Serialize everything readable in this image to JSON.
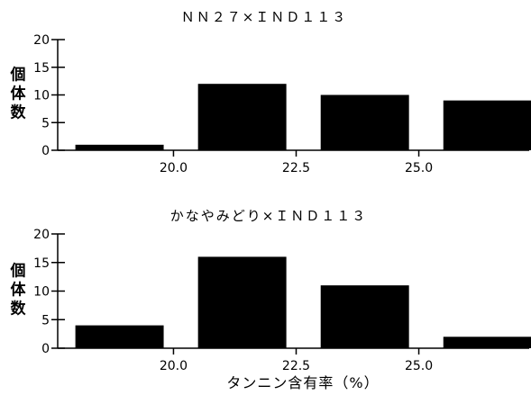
{
  "chart_data": [
    {
      "type": "bar",
      "title": "ＮＮ２７×ＩＮＤ１１３",
      "ylabel": "個体数",
      "xlabel": "",
      "ylim": [
        0,
        20
      ],
      "yticks": [
        "0",
        "5",
        "10",
        "15",
        "20"
      ],
      "xticks": [
        "20.0",
        "22.5",
        "25.0"
      ],
      "xlim": [
        17.75,
        27.25
      ],
      "bins": [
        [
          18.0,
          19.8
        ],
        [
          20.5,
          22.3
        ],
        [
          23.0,
          24.8
        ],
        [
          25.5,
          27.3
        ]
      ],
      "values": [
        1,
        12,
        10,
        9
      ],
      "color": "#000000"
    },
    {
      "type": "bar",
      "title": "かなやみどり×ＩＮＤ１１３",
      "ylabel": "個体数",
      "xlabel": "タンニン含有率（%）",
      "ylim": [
        0,
        20
      ],
      "yticks": [
        "0",
        "5",
        "10",
        "15",
        "20"
      ],
      "xticks": [
        "20.0",
        "22.5",
        "25.0"
      ],
      "xlim": [
        17.75,
        27.25
      ],
      "bins": [
        [
          18.0,
          19.8
        ],
        [
          20.5,
          22.3
        ],
        [
          23.0,
          24.8
        ],
        [
          25.5,
          27.3
        ]
      ],
      "values": [
        4,
        16,
        11,
        2
      ],
      "color": "#000000"
    }
  ]
}
